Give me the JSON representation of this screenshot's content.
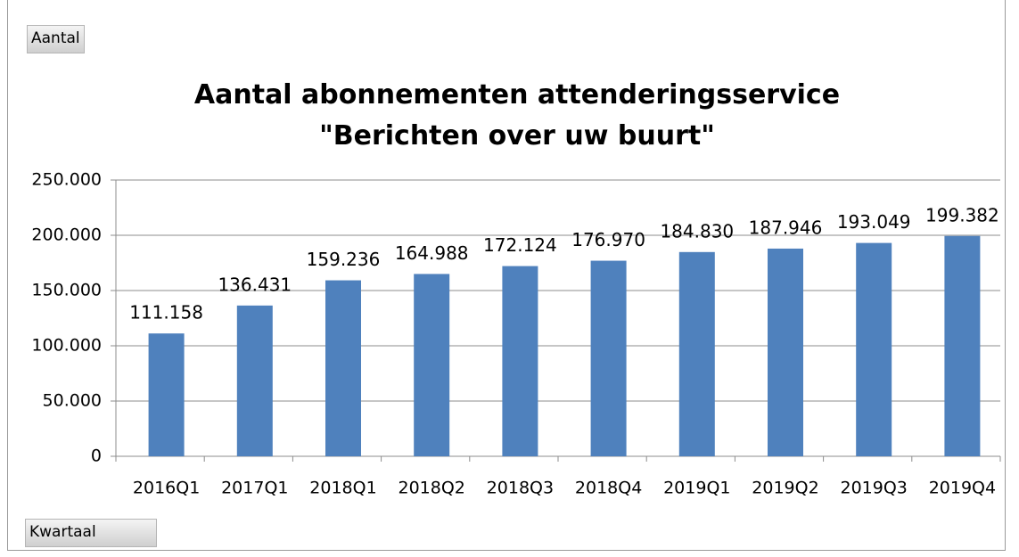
{
  "chart_data": {
    "type": "bar",
    "title": "Aantal abonnementen attenderingsservice \"Berichten over uw buurt\"",
    "ylabel": "Aantal",
    "xlabel": "Kwartaal",
    "categories": [
      "2016Q1",
      "2017Q1",
      "2018Q1",
      "2018Q2",
      "2018Q3",
      "2018Q4",
      "2019Q1",
      "2019Q2",
      "2019Q3",
      "2019Q4"
    ],
    "values": [
      111158,
      136431,
      159236,
      164988,
      172124,
      176970,
      184830,
      187946,
      193049,
      199382
    ],
    "value_labels": [
      "111.158",
      "136.431",
      "159.236",
      "164.988",
      "172.124",
      "176.970",
      "184.830",
      "187.946",
      "193.049",
      "199.382"
    ],
    "color": "#4f81bd",
    "ylim": [
      0,
      250000
    ],
    "yticks": [
      0,
      {
        "value": 50000,
        "label": "50.000"
      },
      {
        "value": 100000,
        "label": "100.000"
      },
      {
        "value": 150000,
        "label": "150.000"
      },
      {
        "value": 200000,
        "label": "200.000"
      },
      {
        "value": 250000,
        "label": "250.000"
      }
    ],
    "grid": true
  }
}
